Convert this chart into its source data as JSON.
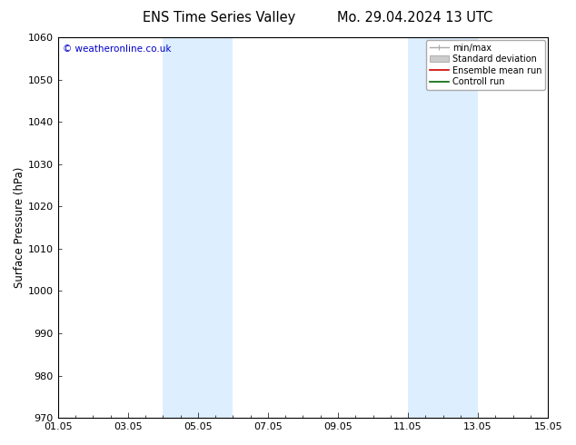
{
  "title_left": "ENS Time Series Valley",
  "title_right": "Mo. 29.04.2024 13 UTC",
  "ylabel": "Surface Pressure (hPa)",
  "ylim": [
    970,
    1060
  ],
  "yticks": [
    970,
    980,
    990,
    1000,
    1010,
    1020,
    1030,
    1040,
    1050,
    1060
  ],
  "xlim_num": [
    0,
    14
  ],
  "xtick_labels": [
    "01.05",
    "03.05",
    "05.05",
    "07.05",
    "09.05",
    "11.05",
    "13.05",
    "15.05"
  ],
  "xtick_positions": [
    0,
    2,
    4,
    6,
    8,
    10,
    12,
    14
  ],
  "shaded_bands": [
    {
      "xmin": 3.0,
      "xmax": 5.0,
      "color": "#ddeeff"
    },
    {
      "xmin": 10.0,
      "xmax": 12.0,
      "color": "#ddeeff"
    }
  ],
  "copyright_text": "© weatheronline.co.uk",
  "copyright_color": "#0000cc",
  "background_color": "#ffffff",
  "grid_color": "#dddddd",
  "tick_color": "#000000",
  "spine_color": "#000000",
  "title_fontsize": 10.5,
  "label_fontsize": 8.5,
  "tick_fontsize": 8.0
}
